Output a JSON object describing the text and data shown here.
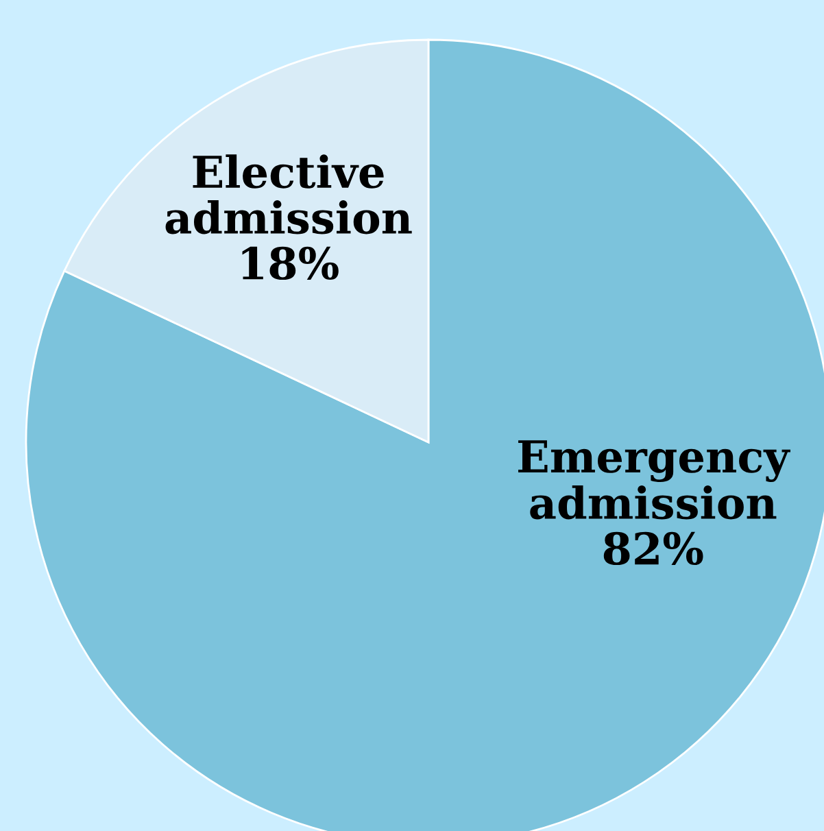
{
  "chart_data": {
    "type": "pie",
    "categories": [
      "Emergency admission",
      "Elective admission"
    ],
    "values": [
      82,
      18
    ],
    "value_labels": [
      "82%",
      "18%"
    ],
    "colors": [
      "#7cc3dc",
      "#d9ecf7"
    ],
    "legend": false
  }
}
